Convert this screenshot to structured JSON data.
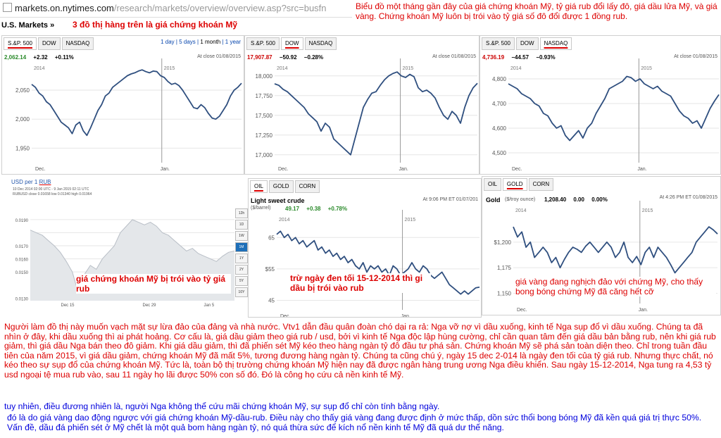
{
  "url_bar": {
    "host": "markets.on.nytimes.com",
    "path": "/research/markets/overview/overview.asp?src=busfn"
  },
  "header": {
    "title": "U.S. Markets »",
    "red_note": "3 đồ thị hàng trên là giá chứng khoán Mỹ"
  },
  "top_caption": "Biểu đồ một tháng gần đây của giá chứng khoán Mỹ, tỷ giá rub đổi lấy đô, giá dầu lửa Mỹ, và giá vàng. Chứng khoán Mỹ luôn bị trói vào tỷ giá số đô đổi được 1 đồng rub.",
  "range_links": {
    "day": "1 day",
    "five": "5 days",
    "month": "1 month",
    "year": "1 year"
  },
  "colors": {
    "line": "#2f4f7f",
    "annotation": "#dd0000",
    "blue_text": "#0000dd"
  },
  "panels": {
    "sp500": {
      "tabs": [
        "S.&P. 500",
        "DOW",
        "NASDAQ"
      ],
      "value": "2,062.14",
      "change": "+2.32",
      "pct": "+0.11%",
      "note": "At close 01/08/2015"
    },
    "dow": {
      "tabs": [
        "S.&P. 500",
        "DOW",
        "NASDAQ"
      ],
      "value": "17,907.87",
      "change": "−50.92",
      "pct": "−0.28%",
      "note": "At close 01/08/2015"
    },
    "nasdaq": {
      "tabs": [
        "S.&P. 500",
        "DOW",
        "NASDAQ"
      ],
      "value": "4,736.19",
      "change": "−44.57",
      "pct": "−0.93%",
      "note": "At close 01/08/2015"
    },
    "oil": {
      "tabs": [
        "OIL",
        "GOLD",
        "CORN"
      ],
      "name": "Light sweet crude",
      "unit": "($/barrel)",
      "value": "49.17",
      "change": "+0.38",
      "pct": "+0.78%",
      "note": "At 9:06 PM ET 01/07/201"
    },
    "gold": {
      "tabs": [
        "OIL",
        "GOLD",
        "CORN"
      ],
      "name": "Gold",
      "unit": "($/troy ounce)",
      "value": "1,208.40",
      "change": "0.00",
      "pct": "0.00%",
      "note": "At 4:26 PM ET 01/08/2015"
    },
    "rub": {
      "title_prefix": "USD per 1 ",
      "title_rub": "RUB",
      "sub1": "10 Dec 2014 02:00 UTC - 9 Jan 2015 02:11 UTC",
      "sub2": "RUBUSD close 0.01658 low 0.01340 high 0.01964",
      "buttons": [
        "12h",
        "1D",
        "1W",
        "1M",
        "1Y",
        "2Y",
        "5Y",
        "10Y"
      ],
      "selected_button": "1M"
    }
  },
  "annotations": {
    "rub": "giá chứng khoán Mỹ bị trói vào tỷ giá rub",
    "oil": "trừ ngày đen tối 15-12-2014 thì gi dầu bị trói vào rub",
    "gold": "giá vàng đang nghịch đảo với chứng Mỹ, cho thấy bong bóng chứng Mỹ đã căng hết cỡ"
  },
  "body": {
    "red_text": "Người làm đồ thị này muốn vạch mặt sự lừa đảo của đảng và nhà nước. Vtv1 dẫn đầu quân đoàn chó dại ra rả: Nga vỡ nợ vì dầu xuống, kinh tế Nga sụp đổ vì dầu xuống. Chúng ta đã nhìn ở đây, khi dầu xuống thì ai phát hoảng. Cơ cấu là, giá dầu giảm theo giá rub / usd, bởi vì kinh tế Nga độc lập hùng cường, chỉ cần quan tâm đến giá dầu bản bằng rub, nên khi giá rub giảm, thì giá dầu Nga bán theo đô giảm. Khi giá dầu giảm, thì đã phiến sét Mỹ kéo theo hàng ngàn tỷ đô đầu tư phá sản. Chứng khoán Mỹ sẽ phá sản toàn diện theo. Chỉ trong tuần đầu tiên của năm 2015, vì giá dầu giảm, chứng khoán Mỹ đã mất 5%, tương đương hàng ngàn tỷ. Chúng ta cũng chú ý, ngày 15 dec 2-014 là ngày đen tối của tỷ giá rub. Nhưng thực chất, nó kéo theo sự sụp đổ của chứng khoán Mỹ. Tức là, toàn bộ thị trường chứng khoán Mỹ hiện nay đã được ngân hàng trung ương Nga điều khiển. Sau ngày 15-12-2014, Nga tung ra 4,53 tỷ usd ngoại tệ mua rub vào, sau 11 ngày họ lãi được 50% con số đó. Đó là công họ cứu cả nền kinh tế Mỹ.",
    "blue_text_1": "tuy nhiên, điều đương nhiên là, người Nga không thể cứu mãi chứng khoán Mỹ, sự sụp đổ chỉ còn tính bằng ngày.",
    "blue_text_2": "đó là do giá vàng dao động ngược với giá chứng khoán Mỹ-dầu-rub. Điều này cho thấy giá vàng đang được định ở mức thấp, dồn sức thổi bong bóng Mỹ đã kền quá giá trị thực 50%. Vấn đề, dầu đá phiến sét ở Mỹ chết là một quả bom hàng ngàn tỷ, nó quá thừa sức để kích nổ nền kinh tế Mỹ đã quá dư thế năng."
  },
  "chart_data": [
    {
      "type": "line",
      "id": "sp500",
      "title": "S.&P. 500",
      "x_ticks": [
        "Dec.",
        "Jan."
      ],
      "year_labels": [
        "2014",
        "2015"
      ],
      "y_ticks": [
        1950,
        2000,
        2050
      ],
      "y_tick_labels": [
        "1,950",
        "2,000",
        "2,050"
      ],
      "ylim": [
        1925,
        2095
      ],
      "values": [
        2060,
        2055,
        2045,
        2040,
        2030,
        2025,
        2015,
        2005,
        1995,
        1990,
        1985,
        1975,
        1990,
        1995,
        1980,
        1972,
        1985,
        2000,
        2015,
        2025,
        2040,
        2045,
        2055,
        2060,
        2065,
        2070,
        2075,
        2078,
        2080,
        2083,
        2085,
        2082,
        2080,
        2083,
        2082,
        2075,
        2072,
        2065,
        2060,
        2062,
        2058,
        2050,
        2040,
        2030,
        2020,
        2018,
        2025,
        2020,
        2010,
        2002,
        2000,
        2005,
        2015,
        2025,
        2040,
        2050,
        2055,
        2062
      ]
    },
    {
      "type": "line",
      "id": "dow",
      "title": "DOW",
      "x_ticks": [
        "Dec.",
        "Jan."
      ],
      "year_labels": [
        "2014",
        "2015"
      ],
      "y_ticks": [
        17000,
        17250,
        17500,
        17750,
        18000
      ],
      "y_tick_labels": [
        "17,000",
        "17,250",
        "17,500",
        "17,750",
        "18,000"
      ],
      "ylim": [
        16900,
        18150
      ],
      "values": [
        17900,
        17880,
        17830,
        17800,
        17750,
        17700,
        17650,
        17600,
        17520,
        17470,
        17420,
        17300,
        17400,
        17350,
        17200,
        17150,
        17100,
        17050,
        17000,
        17200,
        17400,
        17600,
        17700,
        17780,
        17800,
        17880,
        17950,
        18000,
        18030,
        18050,
        18000,
        17980,
        18020,
        17990,
        17850,
        17800,
        17820,
        17780,
        17720,
        17600,
        17500,
        17450,
        17550,
        17500,
        17400,
        17600,
        17750,
        17850,
        17907
      ]
    },
    {
      "type": "line",
      "id": "nasdaq",
      "title": "NASDAQ",
      "x_ticks": [
        "Dec.",
        "Jan."
      ],
      "year_labels": [
        "2014",
        "2015"
      ],
      "y_ticks": [
        4500,
        4600,
        4700,
        4800
      ],
      "y_tick_labels": [
        "4,500",
        "4,600",
        "4,700",
        "4,800"
      ],
      "ylim": [
        4460,
        4860
      ],
      "values": [
        4780,
        4770,
        4760,
        4740,
        4730,
        4720,
        4700,
        4690,
        4660,
        4650,
        4620,
        4600,
        4610,
        4570,
        4550,
        4570,
        4590,
        4560,
        4600,
        4620,
        4660,
        4690,
        4720,
        4760,
        4770,
        4780,
        4790,
        4810,
        4805,
        4790,
        4800,
        4780,
        4770,
        4760,
        4770,
        4750,
        4740,
        4730,
        4700,
        4670,
        4650,
        4640,
        4620,
        4630,
        4600,
        4640,
        4680,
        4710,
        4736
      ]
    },
    {
      "type": "line",
      "id": "oil",
      "title": "Light sweet crude",
      "x_ticks": [
        "Dec.",
        "Jan."
      ],
      "year_labels": [
        "2014",
        "2015"
      ],
      "y_ticks": [
        45,
        55,
        65
      ],
      "y_tick_labels": [
        "45",
        "$55",
        "65"
      ],
      "ylim": [
        42,
        72
      ],
      "values": [
        66,
        67,
        65,
        66,
        64,
        65,
        63,
        64,
        62,
        63,
        64,
        61,
        62,
        60,
        61,
        59,
        60,
        58,
        59,
        57,
        58,
        56,
        55,
        57,
        54,
        56,
        55,
        56,
        54,
        55,
        53,
        56,
        55,
        53,
        54,
        55,
        57,
        55,
        54,
        56,
        55,
        53,
        52,
        53,
        54,
        52,
        50,
        49,
        48,
        47,
        48,
        47,
        48,
        49,
        49.2
      ]
    },
    {
      "type": "line",
      "id": "gold",
      "title": "Gold",
      "x_ticks": [
        "Dec.",
        "Jan."
      ],
      "year_labels": [
        "2014",
        "2015"
      ],
      "y_ticks": [
        1150,
        1175,
        1200
      ],
      "y_tick_labels": [
        "1,150",
        "1,175",
        "$1,200"
      ],
      "ylim": [
        1140,
        1235
      ],
      "values": [
        1215,
        1205,
        1210,
        1195,
        1200,
        1185,
        1190,
        1195,
        1190,
        1180,
        1185,
        1175,
        1183,
        1190,
        1195,
        1193,
        1190,
        1196,
        1200,
        1195,
        1190,
        1195,
        1200,
        1195,
        1185,
        1190,
        1200,
        1185,
        1180,
        1186,
        1178,
        1190,
        1195,
        1185,
        1195,
        1190,
        1185,
        1178,
        1170,
        1175,
        1180,
        1185,
        1190,
        1200,
        1205,
        1210,
        1215,
        1212,
        1208
      ]
    },
    {
      "type": "area",
      "id": "rub",
      "title": "USD per 1 RUB",
      "x_ticks": [
        "Dec 15",
        "Dec 29",
        "Jan 5"
      ],
      "y_ticks": [
        0.013,
        0.014,
        0.015,
        0.016,
        0.017,
        0.018,
        0.019
      ],
      "y_tick_labels": [
        "0.0130",
        "",
        "0.0150",
        "0.0160",
        "0.0170",
        "",
        "0.0190"
      ],
      "ylim": [
        0.0128,
        0.0198
      ],
      "values": [
        0.0182,
        0.018,
        0.0178,
        0.0174,
        0.017,
        0.0165,
        0.0158,
        0.015,
        0.0134,
        0.0148,
        0.0155,
        0.0152,
        0.016,
        0.0165,
        0.017,
        0.018,
        0.0185,
        0.019,
        0.0188,
        0.0186,
        0.0188,
        0.0185,
        0.018,
        0.0178,
        0.0174,
        0.017,
        0.0166,
        0.0168,
        0.0164,
        0.0162,
        0.016,
        0.0158,
        0.0162,
        0.0165,
        0.0166
      ]
    }
  ]
}
